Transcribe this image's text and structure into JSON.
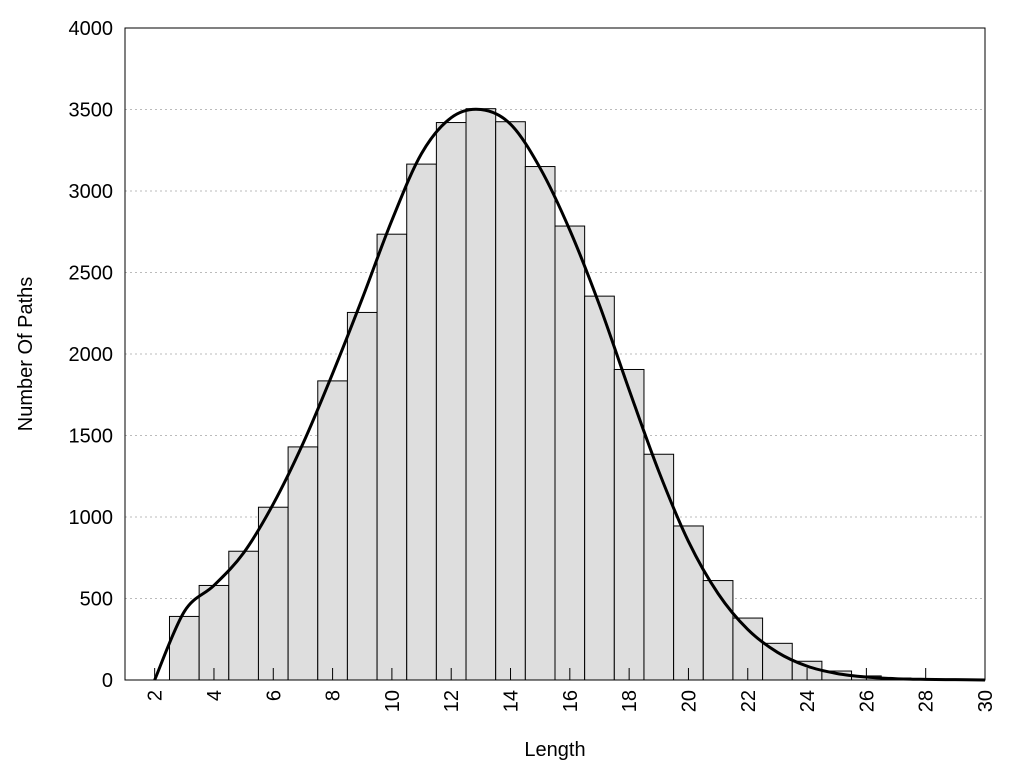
{
  "chart_data": {
    "type": "histogram",
    "xlabel": "Length",
    "ylabel": "Number Of Paths",
    "bins": [
      2.5,
      3.5,
      4.5,
      5.5,
      6.5,
      7.5,
      8.5,
      9.5,
      10.5,
      11.5,
      12.5,
      13.5,
      14.5,
      15.5,
      16.5,
      17.5,
      18.5,
      19.5,
      20.5,
      21.5,
      22.5,
      23.5,
      24.5,
      25.5,
      26.5,
      27.5,
      28.5,
      29.5
    ],
    "values": [
      390,
      580,
      790,
      1060,
      1430,
      1835,
      2255,
      2735,
      3165,
      3420,
      3505,
      3425,
      3150,
      2785,
      2355,
      1905,
      1385,
      945,
      610,
      380,
      225,
      115,
      55,
      25,
      12,
      5,
      3
    ],
    "color": "#dedede",
    "line": {
      "type": "line",
      "color": "#000000",
      "x": [
        2,
        3,
        4,
        5,
        6,
        7,
        8,
        9,
        10,
        11,
        12,
        13,
        14,
        15,
        16,
        17,
        18,
        19,
        20,
        21,
        22,
        23,
        24,
        25,
        26,
        27,
        28,
        29,
        30
      ],
      "values": [
        0,
        420,
        580,
        780,
        1080,
        1450,
        1880,
        2340,
        2820,
        3230,
        3450,
        3500,
        3410,
        3140,
        2760,
        2300,
        1780,
        1280,
        850,
        530,
        310,
        170,
        85,
        40,
        18,
        8,
        4,
        2,
        0
      ]
    },
    "xlim": [
      1,
      30
    ],
    "ylim": [
      0,
      4000
    ],
    "xticks": [
      2,
      4,
      6,
      8,
      10,
      12,
      14,
      16,
      18,
      20,
      22,
      24,
      26,
      28,
      30
    ],
    "yticks": [
      0,
      500,
      1000,
      1500,
      2000,
      2500,
      3000,
      3500,
      4000
    ],
    "grid": true
  }
}
